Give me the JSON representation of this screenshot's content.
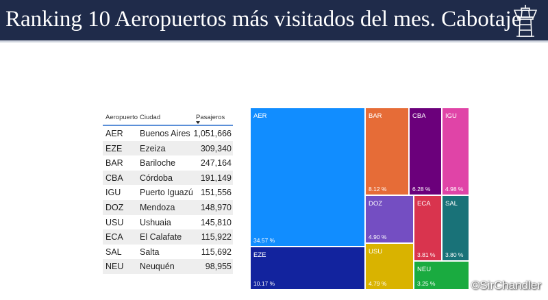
{
  "header": {
    "title": "Ranking 10 Aeropuertos más visitados del mes. Cabotaje",
    "background": "#1f2b4a",
    "icon": "control-tower-icon"
  },
  "table": {
    "columns": [
      "Aeropuerto",
      "Ciudad",
      "Pasajeros"
    ],
    "sort_column": "Pasajeros",
    "sort_direction": "descending",
    "rows": [
      {
        "code": "AER",
        "city": "Buenos Aires",
        "passengers": "1,051,666"
      },
      {
        "code": "EZE",
        "city": "Ezeiza",
        "passengers": "309,340"
      },
      {
        "code": "BAR",
        "city": "Bariloche",
        "passengers": "247,164"
      },
      {
        "code": "CBA",
        "city": "Córdoba",
        "passengers": "191,149"
      },
      {
        "code": "IGU",
        "city": "Puerto Iguazú",
        "passengers": "151,556"
      },
      {
        "code": "DOZ",
        "city": "Mendoza",
        "passengers": "148,970"
      },
      {
        "code": "USU",
        "city": "Ushuaia",
        "passengers": "145,810"
      },
      {
        "code": "ECA",
        "city": "El Calafate",
        "passengers": "115,922"
      },
      {
        "code": "SAL",
        "city": "Salta",
        "passengers": "115,692"
      },
      {
        "code": "NEU",
        "city": "Neuquén",
        "passengers": "98,955"
      }
    ]
  },
  "treemap": {
    "tiles": [
      {
        "code": "AER",
        "share": "34.57 %",
        "color": "#118dff"
      },
      {
        "code": "EZE",
        "share": "10.17 %",
        "color": "#12239e"
      },
      {
        "code": "BAR",
        "share": "8.12 %",
        "color": "#e66c37"
      },
      {
        "code": "CBA",
        "share": "6.28 %",
        "color": "#6b007b"
      },
      {
        "code": "IGU",
        "share": "4.98 %",
        "color": "#e044a7"
      },
      {
        "code": "DOZ",
        "share": "4.90 %",
        "color": "#744ec2"
      },
      {
        "code": "ECA",
        "share": "3.81 %",
        "color": "#d9344e"
      },
      {
        "code": "SAL",
        "share": "3.80 %",
        "color": "#197278"
      },
      {
        "code": "USU",
        "share": "4.79 %",
        "color": "#d9b300"
      },
      {
        "code": "NEU",
        "share": "3.25 %",
        "color": "#1aab40"
      }
    ]
  },
  "watermark": "©SirChandler"
}
